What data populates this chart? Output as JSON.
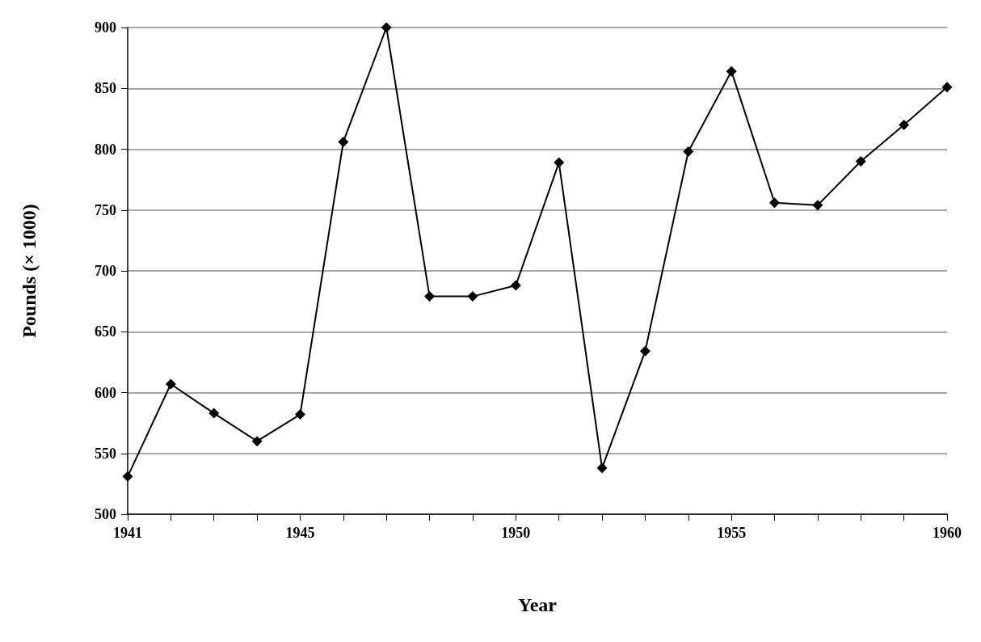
{
  "chart_data": {
    "type": "line",
    "xlabel": "Year",
    "ylabel": "Pounds (× 1000)",
    "x": [
      1941,
      1942,
      1943,
      1944,
      1945,
      1946,
      1947,
      1948,
      1949,
      1950,
      1951,
      1952,
      1953,
      1954,
      1955,
      1956,
      1957,
      1958,
      1959,
      1960
    ],
    "series": [
      {
        "color": "#000000",
        "values": [
          531,
          607,
          583,
          560,
          582,
          806,
          900,
          679,
          679,
          688,
          789,
          538,
          634,
          798,
          864,
          756,
          754,
          790,
          820,
          851
        ]
      }
    ],
    "xlim": [
      1941,
      1960
    ],
    "xticks": [
      1941,
      {
        "value": 1942,
        "label": null
      },
      {
        "value": 1943,
        "label": null
      },
      {
        "value": 1944,
        "label": null
      },
      1945,
      {
        "value": 1946,
        "label": null
      },
      {
        "value": 1947,
        "label": null
      },
      {
        "value": 1948,
        "label": null
      },
      {
        "value": 1949,
        "label": null
      },
      1950,
      {
        "value": 1951,
        "label": null
      },
      {
        "value": 1952,
        "label": null
      },
      {
        "value": 1953,
        "label": null
      },
      {
        "value": 1954,
        "label": null
      },
      1955,
      {
        "value": 1956,
        "label": null
      },
      {
        "value": 1957,
        "label": null
      },
      {
        "value": 1958,
        "label": null
      },
      {
        "value": 1959,
        "label": null
      },
      1960
    ],
    "ylim": [
      500,
      900
    ],
    "yticks": [
      500,
      550,
      600,
      650,
      700,
      750,
      800,
      850,
      900
    ],
    "grid": "y",
    "marker": "diamond",
    "line_style": "solid"
  }
}
